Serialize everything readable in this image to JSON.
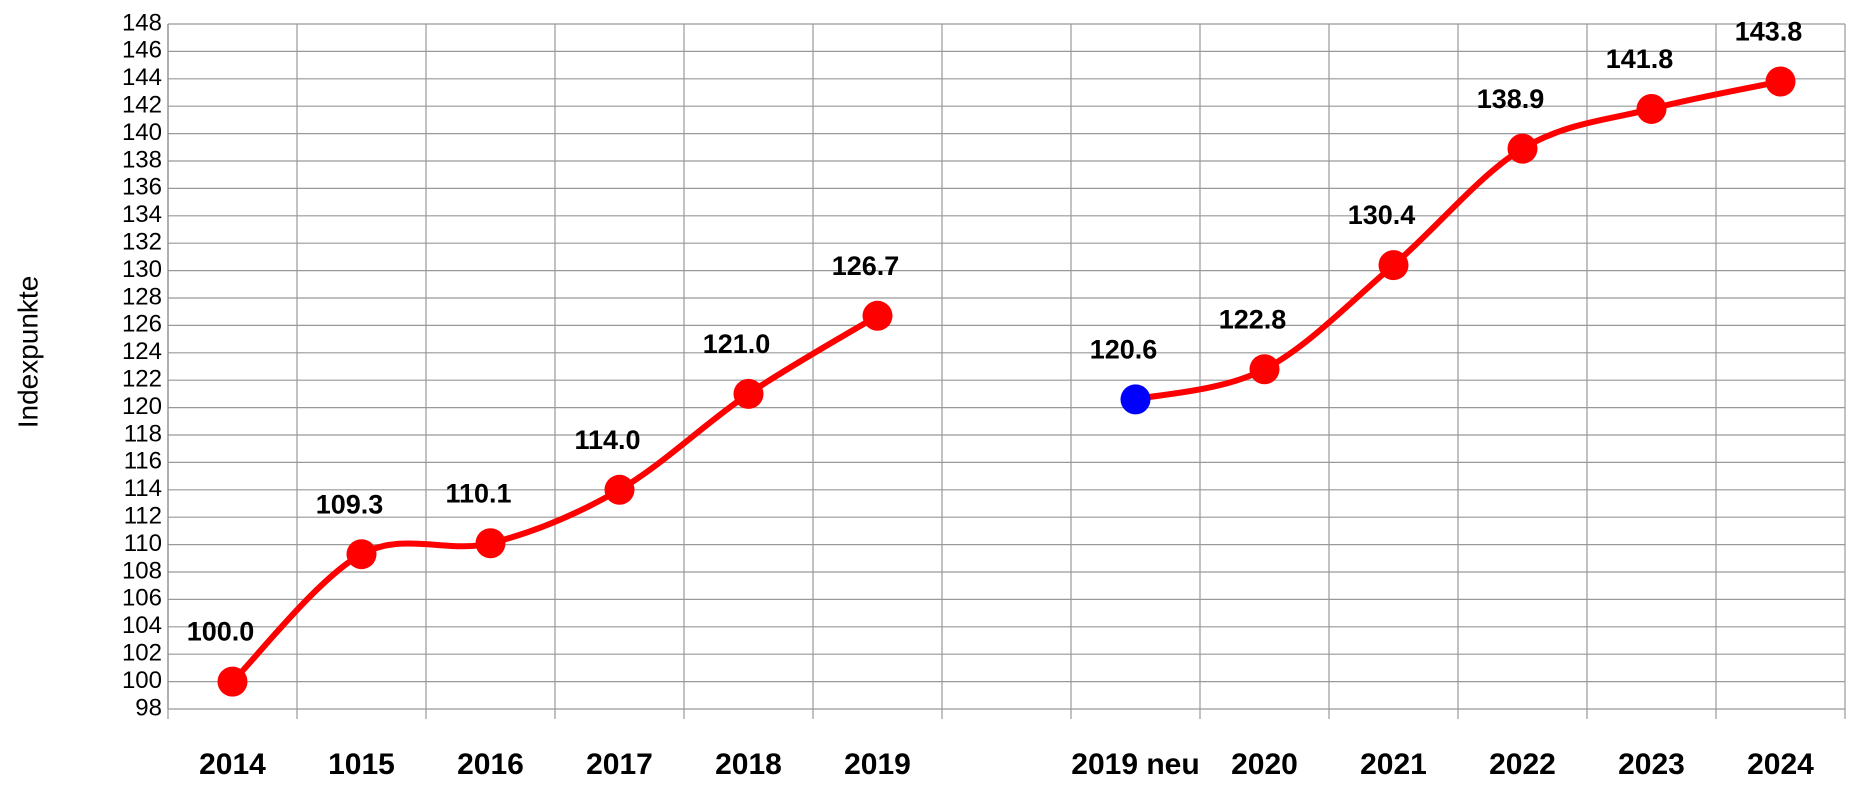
{
  "chart_data": {
    "type": "line",
    "y_label": "Indexpunkte",
    "categories": [
      "2014",
      "1015",
      "2016",
      "2017",
      "2018",
      "2019",
      null,
      "2019 neu",
      "2020",
      "2021",
      "2022",
      "2023",
      "2024"
    ],
    "series": [
      {
        "color": "#ff0000",
        "values": [
          100.0,
          109.3,
          110.1,
          114.0,
          121.0,
          126.7,
          null,
          120.6,
          122.8,
          130.4,
          138.9,
          141.8,
          143.8
        ],
        "value_labels": [
          "100.0",
          "109.3",
          "110.1",
          "114.0",
          "121.0",
          "126.7",
          null,
          "120.6",
          "122.8",
          "130.4",
          "138.9",
          "141.8",
          "143.8"
        ],
        "marker_colors": [
          "#ff0000",
          "#ff0000",
          "#ff0000",
          "#ff0000",
          "#ff0000",
          "#ff0000",
          null,
          "#0000ff",
          "#ff0000",
          "#ff0000",
          "#ff0000",
          "#ff0000",
          "#ff0000"
        ]
      }
    ],
    "ylim": [
      98,
      148
    ],
    "yticks": [
      98,
      100,
      102,
      104,
      106,
      108,
      110,
      112,
      114,
      116,
      118,
      120,
      122,
      124,
      126,
      128,
      130,
      132,
      134,
      136,
      138,
      140,
      142,
      144,
      146,
      148
    ],
    "grid": true
  }
}
